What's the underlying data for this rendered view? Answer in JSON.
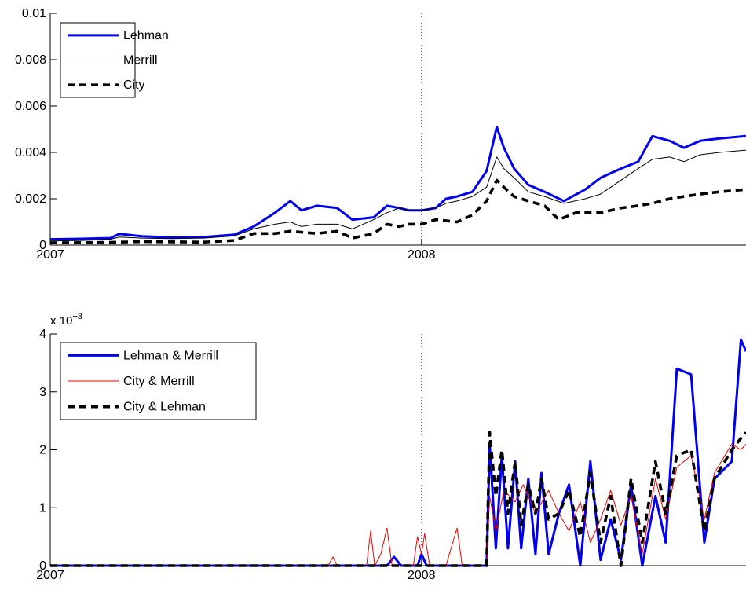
{
  "chart_data": [
    {
      "type": "line",
      "x_domain": [
        "2007-01-01",
        "2008-11-15"
      ],
      "ylim": [
        0,
        0.01
      ],
      "yticks": [
        "0",
        "0.002",
        "0.004",
        "0.006",
        "0.008",
        "0.01"
      ],
      "ytick_values": [
        0,
        0.002,
        0.004,
        0.006,
        0.008,
        0.01
      ],
      "xticks": [
        "2007",
        "2008"
      ],
      "xtick_values": [
        "2007-01-01",
        "2008-01-01"
      ],
      "vline": "2008-01-01",
      "legend_placement": "top-left",
      "grid": false,
      "series": [
        {
          "name": "Lehman",
          "color": "#0000ee",
          "style": "solid-thick",
          "points": [
            [
              "2007-01-01",
              0.00025
            ],
            [
              "2007-02-01",
              0.00027
            ],
            [
              "2007-03-01",
              0.0003
            ],
            [
              "2007-03-10",
              0.00048
            ],
            [
              "2007-04-01",
              0.00038
            ],
            [
              "2007-05-01",
              0.00033
            ],
            [
              "2007-06-01",
              0.00035
            ],
            [
              "2007-07-01",
              0.00045
            ],
            [
              "2007-07-20",
              0.0008
            ],
            [
              "2007-08-10",
              0.0014
            ],
            [
              "2007-08-25",
              0.0019
            ],
            [
              "2007-09-05",
              0.0015
            ],
            [
              "2007-09-20",
              0.0017
            ],
            [
              "2007-10-10",
              0.0016
            ],
            [
              "2007-10-25",
              0.0011
            ],
            [
              "2007-11-15",
              0.0012
            ],
            [
              "2007-11-28",
              0.0017
            ],
            [
              "2007-12-10",
              0.0016
            ],
            [
              "2007-12-20",
              0.0015
            ],
            [
              "2008-01-01",
              0.0015
            ],
            [
              "2008-01-15",
              0.0016
            ],
            [
              "2008-01-25",
              0.002
            ],
            [
              "2008-02-05",
              0.0021
            ],
            [
              "2008-02-20",
              0.0023
            ],
            [
              "2008-03-05",
              0.0032
            ],
            [
              "2008-03-15",
              0.0051
            ],
            [
              "2008-03-22",
              0.0042
            ],
            [
              "2008-04-01",
              0.0033
            ],
            [
              "2008-04-15",
              0.0026
            ],
            [
              "2008-05-01",
              0.0023
            ],
            [
              "2008-05-20",
              0.0019
            ],
            [
              "2008-06-10",
              0.0024
            ],
            [
              "2008-06-25",
              0.0029
            ],
            [
              "2008-07-15",
              0.0033
            ],
            [
              "2008-08-01",
              0.0036
            ],
            [
              "2008-08-15",
              0.0047
            ],
            [
              "2008-09-01",
              0.0045
            ],
            [
              "2008-09-15",
              0.0042
            ],
            [
              "2008-10-01",
              0.0045
            ],
            [
              "2008-10-20",
              0.0046
            ],
            [
              "2008-11-15",
              0.0047
            ]
          ]
        },
        {
          "name": "Merrill",
          "color": "#000000",
          "style": "solid-thin",
          "points": [
            [
              "2007-01-01",
              0.00018
            ],
            [
              "2007-02-01",
              0.0002
            ],
            [
              "2007-03-01",
              0.00025
            ],
            [
              "2007-03-10",
              0.00035
            ],
            [
              "2007-04-01",
              0.0003
            ],
            [
              "2007-05-01",
              0.00028
            ],
            [
              "2007-06-01",
              0.0003
            ],
            [
              "2007-07-01",
              0.0004
            ],
            [
              "2007-07-20",
              0.0007
            ],
            [
              "2007-08-10",
              0.0009
            ],
            [
              "2007-08-25",
              0.001
            ],
            [
              "2007-09-05",
              0.0008
            ],
            [
              "2007-09-20",
              0.0009
            ],
            [
              "2007-10-10",
              0.0009
            ],
            [
              "2007-10-25",
              0.0007
            ],
            [
              "2007-11-15",
              0.0011
            ],
            [
              "2007-11-28",
              0.0014
            ],
            [
              "2007-12-10",
              0.0016
            ],
            [
              "2007-12-20",
              0.0015
            ],
            [
              "2008-01-01",
              0.0015
            ],
            [
              "2008-01-15",
              0.0016
            ],
            [
              "2008-01-25",
              0.0018
            ],
            [
              "2008-02-05",
              0.0019
            ],
            [
              "2008-02-20",
              0.0021
            ],
            [
              "2008-03-05",
              0.0025
            ],
            [
              "2008-03-15",
              0.0038
            ],
            [
              "2008-03-22",
              0.0033
            ],
            [
              "2008-04-01",
              0.0029
            ],
            [
              "2008-04-15",
              0.0023
            ],
            [
              "2008-05-01",
              0.0021
            ],
            [
              "2008-05-20",
              0.0018
            ],
            [
              "2008-06-10",
              0.002
            ],
            [
              "2008-06-25",
              0.0022
            ],
            [
              "2008-07-15",
              0.0028
            ],
            [
              "2008-08-01",
              0.0033
            ],
            [
              "2008-08-15",
              0.0037
            ],
            [
              "2008-09-01",
              0.0038
            ],
            [
              "2008-09-15",
              0.0036
            ],
            [
              "2008-10-01",
              0.0039
            ],
            [
              "2008-10-20",
              0.004
            ],
            [
              "2008-11-15",
              0.0041
            ]
          ]
        },
        {
          "name": "City",
          "color": "#000000",
          "style": "dashed-thick",
          "points": [
            [
              "2007-01-01",
              0.0001
            ],
            [
              "2007-03-01",
              0.00012
            ],
            [
              "2007-04-01",
              0.00015
            ],
            [
              "2007-06-01",
              0.00013
            ],
            [
              "2007-07-01",
              0.0002
            ],
            [
              "2007-07-20",
              0.0005
            ],
            [
              "2007-08-10",
              0.0005
            ],
            [
              "2007-08-25",
              0.0006
            ],
            [
              "2007-09-20",
              0.0005
            ],
            [
              "2007-10-10",
              0.0006
            ],
            [
              "2007-10-25",
              0.0003
            ],
            [
              "2007-11-15",
              0.0005
            ],
            [
              "2007-11-28",
              0.0009
            ],
            [
              "2007-12-10",
              0.0008
            ],
            [
              "2007-12-20",
              0.0009
            ],
            [
              "2008-01-01",
              0.0009
            ],
            [
              "2008-01-15",
              0.0011
            ],
            [
              "2008-02-05",
              0.001
            ],
            [
              "2008-02-20",
              0.0013
            ],
            [
              "2008-03-05",
              0.0019
            ],
            [
              "2008-03-15",
              0.0028
            ],
            [
              "2008-03-22",
              0.0025
            ],
            [
              "2008-04-01",
              0.0021
            ],
            [
              "2008-04-15",
              0.0019
            ],
            [
              "2008-05-01",
              0.0017
            ],
            [
              "2008-05-15",
              0.0011
            ],
            [
              "2008-06-01",
              0.0014
            ],
            [
              "2008-06-25",
              0.0014
            ],
            [
              "2008-07-15",
              0.0016
            ],
            [
              "2008-08-01",
              0.0017
            ],
            [
              "2008-08-15",
              0.0018
            ],
            [
              "2008-09-01",
              0.002
            ],
            [
              "2008-09-15",
              0.0021
            ],
            [
              "2008-10-01",
              0.0022
            ],
            [
              "2008-10-20",
              0.0023
            ],
            [
              "2008-11-15",
              0.0024
            ]
          ]
        }
      ]
    },
    {
      "type": "line",
      "x_domain": [
        "2007-01-01",
        "2008-11-15"
      ],
      "ylim": [
        0,
        4
      ],
      "y_exponent": "x 10",
      "y_exponent_power": "−3",
      "yticks": [
        "0",
        "1",
        "2",
        "3",
        "4"
      ],
      "ytick_values": [
        0,
        1,
        2,
        3,
        4
      ],
      "xticks": [
        "2007",
        "2008"
      ],
      "xtick_values": [
        "2007-01-01",
        "2008-01-01"
      ],
      "vline": "2008-01-01",
      "legend_placement": "top-left",
      "grid": false,
      "series": [
        {
          "name": "Lehman & Merrill",
          "color": "#0000ee",
          "style": "solid-thick",
          "points": [
            [
              "2007-01-01",
              0
            ],
            [
              "2007-11-28",
              0
            ],
            [
              "2007-12-05",
              0.15
            ],
            [
              "2007-12-12",
              0
            ],
            [
              "2007-12-28",
              0
            ],
            [
              "2008-01-01",
              0.2
            ],
            [
              "2008-01-06",
              0
            ],
            [
              "2008-03-05",
              0
            ],
            [
              "2008-03-08",
              2.1
            ],
            [
              "2008-03-14",
              0.3
            ],
            [
              "2008-03-20",
              1.9
            ],
            [
              "2008-03-26",
              0.3
            ],
            [
              "2008-04-02",
              1.8
            ],
            [
              "2008-04-08",
              0.3
            ],
            [
              "2008-04-15",
              1.5
            ],
            [
              "2008-04-22",
              0.2
            ],
            [
              "2008-04-28",
              1.6
            ],
            [
              "2008-05-05",
              0.2
            ],
            [
              "2008-05-15",
              0.9
            ],
            [
              "2008-05-25",
              1.4
            ],
            [
              "2008-06-05",
              0
            ],
            [
              "2008-06-15",
              1.8
            ],
            [
              "2008-06-25",
              0.1
            ],
            [
              "2008-07-05",
              0.8
            ],
            [
              "2008-07-15",
              0.1
            ],
            [
              "2008-07-25",
              1.4
            ],
            [
              "2008-08-05",
              0
            ],
            [
              "2008-08-18",
              1.2
            ],
            [
              "2008-08-28",
              0.4
            ],
            [
              "2008-09-08",
              3.4
            ],
            [
              "2008-09-22",
              3.3
            ],
            [
              "2008-10-05",
              0.4
            ],
            [
              "2008-10-15",
              1.5
            ],
            [
              "2008-11-01",
              1.8
            ],
            [
              "2008-11-10",
              3.9
            ],
            [
              "2008-11-15",
              3.7
            ]
          ]
        },
        {
          "name": "City & Merrill",
          "color": "#ee0000",
          "style": "solid-thin",
          "points": [
            [
              "2007-01-01",
              0
            ],
            [
              "2007-10-01",
              0
            ],
            [
              "2007-10-06",
              0.15
            ],
            [
              "2007-10-10",
              0
            ],
            [
              "2007-11-08",
              0
            ],
            [
              "2007-11-12",
              0.6
            ],
            [
              "2007-11-16",
              0
            ],
            [
              "2007-11-22",
              0.2
            ],
            [
              "2007-11-28",
              0.65
            ],
            [
              "2007-12-03",
              0
            ],
            [
              "2007-12-24",
              0
            ],
            [
              "2007-12-28",
              0.5
            ],
            [
              "2008-01-01",
              0.2
            ],
            [
              "2008-01-04",
              0.55
            ],
            [
              "2008-01-09",
              0
            ],
            [
              "2008-01-25",
              0
            ],
            [
              "2008-01-30",
              0.3
            ],
            [
              "2008-02-05",
              0.65
            ],
            [
              "2008-02-10",
              0
            ],
            [
              "2008-03-05",
              0
            ],
            [
              "2008-03-08",
              1.2
            ],
            [
              "2008-03-14",
              0.6
            ],
            [
              "2008-03-22",
              1.3
            ],
            [
              "2008-04-02",
              1.1
            ],
            [
              "2008-04-10",
              1.4
            ],
            [
              "2008-04-22",
              0.9
            ],
            [
              "2008-05-05",
              1.3
            ],
            [
              "2008-05-15",
              0.9
            ],
            [
              "2008-05-25",
              0.6
            ],
            [
              "2008-06-05",
              1.1
            ],
            [
              "2008-06-15",
              0.4
            ],
            [
              "2008-06-25",
              0.8
            ],
            [
              "2008-07-05",
              1.3
            ],
            [
              "2008-07-15",
              0.7
            ],
            [
              "2008-07-25",
              1.2
            ],
            [
              "2008-08-05",
              0.2
            ],
            [
              "2008-08-18",
              1.5
            ],
            [
              "2008-08-28",
              0.8
            ],
            [
              "2008-09-08",
              1.7
            ],
            [
              "2008-09-22",
              1.9
            ],
            [
              "2008-10-05",
              0.8
            ],
            [
              "2008-10-15",
              1.6
            ],
            [
              "2008-11-01",
              2.1
            ],
            [
              "2008-11-10",
              2.0
            ],
            [
              "2008-11-15",
              2.1
            ]
          ]
        },
        {
          "name": "City & Lehman",
          "color": "#000000",
          "style": "dashed-thick",
          "points": [
            [
              "2007-01-01",
              0
            ],
            [
              "2008-03-05",
              0
            ],
            [
              "2008-03-08",
              2.3
            ],
            [
              "2008-03-14",
              1.2
            ],
            [
              "2008-03-20",
              2.0
            ],
            [
              "2008-03-26",
              0.9
            ],
            [
              "2008-04-02",
              1.8
            ],
            [
              "2008-04-08",
              0.7
            ],
            [
              "2008-04-15",
              1.4
            ],
            [
              "2008-04-22",
              0.9
            ],
            [
              "2008-04-28",
              1.5
            ],
            [
              "2008-05-05",
              0.8
            ],
            [
              "2008-05-15",
              0.9
            ],
            [
              "2008-05-25",
              1.3
            ],
            [
              "2008-06-05",
              0.5
            ],
            [
              "2008-06-15",
              1.6
            ],
            [
              "2008-06-25",
              0.4
            ],
            [
              "2008-07-05",
              1.2
            ],
            [
              "2008-07-15",
              0
            ],
            [
              "2008-07-25",
              1.5
            ],
            [
              "2008-08-05",
              0.4
            ],
            [
              "2008-08-18",
              1.8
            ],
            [
              "2008-08-28",
              0.9
            ],
            [
              "2008-09-08",
              1.9
            ],
            [
              "2008-09-22",
              2.0
            ],
            [
              "2008-10-05",
              0.6
            ],
            [
              "2008-10-15",
              1.5
            ],
            [
              "2008-11-01",
              2.0
            ],
            [
              "2008-11-10",
              2.2
            ],
            [
              "2008-11-15",
              2.3
            ]
          ]
        }
      ]
    }
  ]
}
